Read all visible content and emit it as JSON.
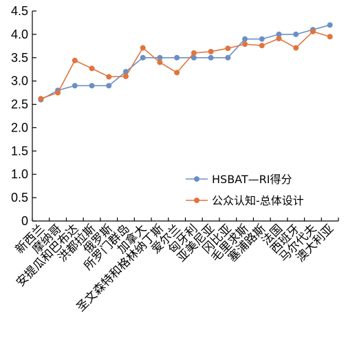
{
  "chart_data": {
    "type": "line",
    "title": "",
    "xlabel": "",
    "ylabel": "",
    "ylim": [
      0,
      4.5
    ],
    "yticks": [
      "0",
      "0.5",
      "1.0",
      "1.5",
      "2.0",
      "2.5",
      "3.0",
      "3.5",
      "4.0",
      "4.5"
    ],
    "grid": false,
    "legend_position": "bottom-right",
    "categories": [
      "新西兰",
      "摩纳哥",
      "安提瓜和巴布达",
      "洪都拉斯",
      "俄罗斯",
      "所罗门群岛",
      "加拿大",
      "圣文森特和格林纳丁斯",
      "爱尔兰",
      "匈牙利",
      "亚美尼亚",
      "冈比亚",
      "毛里求斯",
      "塞浦路斯",
      "法国",
      "西班牙",
      "马尔代夫",
      "澳大利亚"
    ],
    "series": [
      {
        "name": "HSBAT—RI得分",
        "color": "#6a8fc5",
        "values": [
          2.6,
          2.8,
          2.9,
          2.9,
          2.9,
          3.2,
          3.5,
          3.5,
          3.5,
          3.5,
          3.5,
          3.5,
          3.9,
          3.9,
          4.0,
          4.0,
          4.1,
          4.2
        ]
      },
      {
        "name": "公众认知-总体设计",
        "color": "#e0743d",
        "values": [
          2.62,
          2.75,
          3.44,
          3.27,
          3.09,
          3.1,
          3.71,
          3.4,
          3.18,
          3.6,
          3.63,
          3.7,
          3.79,
          3.76,
          3.91,
          3.71,
          4.06,
          3.95
        ]
      }
    ]
  }
}
